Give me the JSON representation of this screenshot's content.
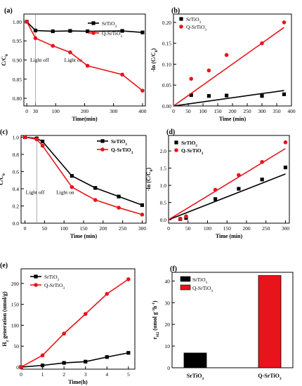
{
  "chart_data": [
    {
      "id": "a",
      "panel_label": "(a)",
      "type": "line",
      "xlabel": "Time(min)",
      "ylabel": "C/C",
      "ylabel_sub": "0",
      "xlim": [
        -10,
        410
      ],
      "ylim": [
        0.78,
        1.02
      ],
      "xticks": [
        0,
        30,
        100,
        200,
        300,
        400
      ],
      "xtick_labels": [
        "0",
        "30",
        "100",
        "200",
        "300",
        "400"
      ],
      "yticks": [
        0.8,
        0.85,
        0.9,
        0.95,
        1.0
      ],
      "ytick_labels": [
        "0.80",
        "0.85",
        "0.90",
        "0.95",
        "1.00"
      ],
      "vline_x": 30,
      "annotations": [
        {
          "text": "Light off",
          "x": 12,
          "y": 0.895
        },
        {
          "text": "Light on",
          "x": 130,
          "y": 0.895
        }
      ],
      "legend_position": "top-right",
      "series": [
        {
          "name": "SrTiO",
          "name_sub": "3",
          "color": "#000000",
          "marker": "square",
          "x": [
            0,
            30,
            90,
            150,
            210,
            330,
            400
          ],
          "y": [
            1.0,
            0.977,
            0.975,
            0.976,
            0.975,
            0.976,
            0.972
          ]
        },
        {
          "name": "Q-SrTiO",
          "name_sub": "3",
          "color": "#e8141b",
          "marker": "circle",
          "x": [
            0,
            30,
            90,
            150,
            210,
            330,
            400
          ],
          "y": [
            1.0,
            0.957,
            0.937,
            0.92,
            0.885,
            0.862,
            0.82
          ]
        }
      ]
    },
    {
      "id": "b",
      "panel_label": "(b)",
      "type": "scatter",
      "xlabel": "Time (min)",
      "ylabel": "-ln (C/C",
      "ylabel_sub": "0",
      "ylabel_end": ")",
      "xlim": [
        0,
        400
      ],
      "ylim": [
        0,
        0.22
      ],
      "xticks": [
        0,
        50,
        100,
        150,
        200,
        250,
        300,
        350,
        400
      ],
      "xtick_labels": [
        "0",
        "50",
        "100",
        "150",
        "200",
        "250",
        "300",
        "350",
        "400"
      ],
      "yticks": [
        0.0,
        0.05,
        0.1,
        0.15,
        0.2
      ],
      "ytick_labels": [
        "0.00",
        "0.05",
        "0.10",
        "0.15",
        "0.20"
      ],
      "legend_position": "top-left",
      "series": [
        {
          "name": "SrTiO",
          "name_sub": "3",
          "color": "#000000",
          "marker": "square",
          "x": [
            60,
            120,
            180,
            300,
            375
          ],
          "y": [
            0.026,
            0.024,
            0.025,
            0.024,
            0.028
          ],
          "fit": [
            [
              0,
              0
            ],
            [
              375,
              0.037
            ]
          ]
        },
        {
          "name": "Q-SrTiO",
          "name_sub": "3",
          "color": "#e8141b",
          "marker": "circle",
          "x": [
            60,
            120,
            180,
            300,
            375
          ],
          "y": [
            0.065,
            0.085,
            0.122,
            0.15,
            0.2
          ],
          "fit": [
            [
              0,
              0
            ],
            [
              375,
              0.188
            ]
          ]
        }
      ]
    },
    {
      "id": "c",
      "panel_label": "(c)",
      "type": "line",
      "xlabel": "Time (min)",
      "ylabel": "C/C",
      "ylabel_sub": "0",
      "xlim": [
        -10,
        310
      ],
      "ylim": [
        0,
        1.02
      ],
      "xticks": [
        0,
        50,
        100,
        150,
        200,
        250,
        300
      ],
      "xtick_labels": [
        "0",
        "50",
        "100",
        "150",
        "200",
        "250",
        "300"
      ],
      "yticks": [
        0.0,
        0.2,
        0.4,
        0.6,
        0.8,
        1.0
      ],
      "ytick_labels": [
        "0.0",
        "0.2",
        "0.4",
        "0.6",
        "0.8",
        "1.0"
      ],
      "vline_x": 30,
      "annotations": [
        {
          "text": "Light off",
          "x": 2,
          "y": 0.34
        },
        {
          "text": "Light on",
          "x": 80,
          "y": 0.34
        }
      ],
      "legend_position": "top-right",
      "series": [
        {
          "name": "SrTiO",
          "name_sub": "3",
          "color": "#000000",
          "marker": "square",
          "bold": true,
          "x": [
            0,
            30,
            45,
            120,
            180,
            240,
            300
          ],
          "y": [
            1.0,
            0.985,
            0.95,
            0.55,
            0.41,
            0.31,
            0.21
          ]
        },
        {
          "name": "Q-SrTiO",
          "name_sub": "3",
          "color": "#e8141b",
          "marker": "circle",
          "bold": true,
          "x": [
            0,
            30,
            45,
            120,
            180,
            240,
            300
          ],
          "y": [
            1.0,
            0.975,
            0.9,
            0.42,
            0.27,
            0.18,
            0.1
          ]
        }
      ]
    },
    {
      "id": "d",
      "panel_label": "(d)",
      "type": "scatter",
      "xlabel": "Time (min)",
      "ylabel": "-ln (C/C",
      "ylabel_sub": "0",
      "ylabel_end": ")",
      "xlim": [
        0,
        310
      ],
      "ylim": [
        -0.1,
        2.45
      ],
      "xticks": [
        0,
        50,
        100,
        150,
        200,
        250,
        300
      ],
      "xtick_labels": [
        "0",
        "50",
        "100",
        "150",
        "200",
        "250",
        "300"
      ],
      "yticks": [
        0.0,
        0.5,
        1.0,
        1.5,
        2.0
      ],
      "ytick_labels": [
        "0.0",
        "0.5",
        "1.0",
        "1.5",
        "2.0"
      ],
      "legend_position": "top-left",
      "series": [
        {
          "name": "SrTiO",
          "name_sub": "3",
          "color": "#000000",
          "marker": "square",
          "bold": true,
          "x": [
            30,
            45,
            120,
            180,
            240,
            300
          ],
          "y": [
            0.02,
            0.05,
            0.6,
            0.9,
            1.17,
            1.52
          ],
          "fit": [
            [
              0,
              0
            ],
            [
              300,
              1.33
            ]
          ]
        },
        {
          "name": "Q-SrTiO",
          "name_sub": "3",
          "color": "#e8141b",
          "marker": "circle",
          "bold": true,
          "x": [
            30,
            45,
            120,
            180,
            240,
            300
          ],
          "y": [
            0.03,
            0.1,
            0.87,
            1.3,
            1.68,
            2.25
          ],
          "fit": [
            [
              0,
              0
            ],
            [
              300,
              2.07
            ]
          ]
        }
      ]
    },
    {
      "id": "e",
      "panel_label": "(e)",
      "type": "line",
      "xlabel": "Time(h)",
      "ylabel": "H",
      "ylabel_sub": "2",
      "ylabel_end": " generation (umol/g)",
      "xlim": [
        0,
        5.3
      ],
      "ylim": [
        -5,
        235
      ],
      "xticks": [
        0,
        1,
        2,
        3,
        4,
        5
      ],
      "xtick_labels": [
        "0",
        "1",
        "2",
        "3",
        "4",
        "5"
      ],
      "yticks": [
        0,
        50,
        100,
        150,
        200
      ],
      "ytick_labels": [
        "0",
        "50",
        "100",
        "150",
        "200"
      ],
      "legend_position": "top-left",
      "series": [
        {
          "name": "SrTiO",
          "name_sub": "3",
          "color": "#000000",
          "marker": "square",
          "x": [
            0,
            1,
            2,
            3,
            4,
            5
          ],
          "y": [
            0,
            4,
            10,
            13,
            24,
            34
          ]
        },
        {
          "name": "Q-SrTiO",
          "name_sub": "3",
          "color": "#e8141b",
          "marker": "circle",
          "x": [
            0,
            1,
            2,
            3,
            4,
            5
          ],
          "y": [
            0,
            28,
            80,
            127,
            175,
            210
          ]
        }
      ]
    },
    {
      "id": "f",
      "panel_label": "(f)",
      "type": "bar",
      "ylabel": "r",
      "ylabel_sub": "H2",
      "ylabel_end": " (umol g",
      "ylabel_sup1": "-1",
      "ylabel_mid": "h",
      "ylabel_sup2": "-1",
      "ylabel_close": ")",
      "ylim": [
        0,
        44
      ],
      "yticks": [
        0,
        10,
        20,
        30,
        40
      ],
      "ytick_labels": [
        "0",
        "10",
        "20",
        "30",
        "40"
      ],
      "categories": [
        "SrTiO",
        "Q-SrTiO"
      ],
      "categories_sub": [
        "3",
        "3"
      ],
      "values": [
        6.8,
        42.5
      ],
      "colors": [
        "#000000",
        "#e8141b"
      ],
      "legend_position": "top-left",
      "series": [
        {
          "name": "SrTiO",
          "name_sub": "3",
          "color": "#000000"
        },
        {
          "name": "Q-SrTiO",
          "name_sub": "3",
          "color": "#e8141b"
        }
      ]
    }
  ]
}
